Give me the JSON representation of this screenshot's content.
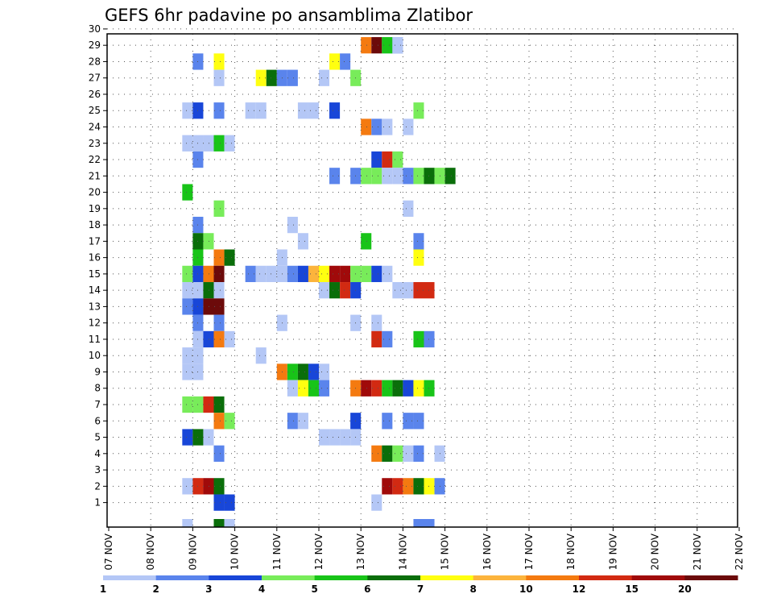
{
  "chart_data": {
    "type": "heatmap",
    "title": "GEFS 6hr padavine po ansamblima Zlatibor",
    "x_tick_labels": [
      "07 NOV",
      "08 NOV",
      "09 NOV",
      "10 NOV",
      "11 NOV",
      "12 NOV",
      "13 NOV",
      "14 NOV",
      "15 NOV",
      "16 NOV",
      "17 NOV",
      "18 NOV",
      "19 NOV",
      "20 NOV",
      "21 NOV",
      "22 NOV"
    ],
    "y_tick_labels": [
      "1",
      "2",
      "3",
      "4",
      "5",
      "6",
      "7",
      "8",
      "9",
      "10",
      "11",
      "12",
      "13",
      "14",
      "15",
      "16",
      "17",
      "18",
      "19",
      "20",
      "21",
      "22",
      "23",
      "24",
      "25",
      "26",
      "27",
      "28",
      "29",
      "30"
    ],
    "x_range_steps": [
      0,
      60
    ],
    "y_range_members": [
      0,
      30
    ],
    "grid": "dotted",
    "colorbar": {
      "labels": [
        "1",
        "2",
        "3",
        "4",
        "5",
        "6",
        "7",
        "8",
        "10",
        "12",
        "15",
        "20"
      ],
      "colors": [
        "#b4c7f6",
        "#5a84ec",
        "#1846d8",
        "#78ec5a",
        "#18c418",
        "#0a6e0a",
        "#ffff10",
        "#fcb43c",
        "#f47a10",
        "#d22a12",
        "#a00a0a",
        "#6c0a0a"
      ]
    },
    "note": "cells: [time_step (6h from 07 NOV 00z), member, precip class index 0-11]",
    "cells": [
      [
        26,
        29,
        0
      ],
      [
        27,
        29,
        1
      ],
      [
        24,
        29,
        8
      ],
      [
        25,
        29,
        11
      ],
      [
        26,
        29,
        4
      ],
      [
        27,
        29,
        0
      ],
      [
        8,
        28,
        1
      ],
      [
        10,
        28,
        6
      ],
      [
        21,
        28,
        6
      ],
      [
        22,
        28,
        1
      ],
      [
        10,
        27,
        0
      ],
      [
        14,
        27,
        6
      ],
      [
        15,
        27,
        5
      ],
      [
        16,
        27,
        1
      ],
      [
        17,
        27,
        1
      ],
      [
        20,
        27,
        0
      ],
      [
        23,
        27,
        3
      ],
      [
        7,
        25,
        0
      ],
      [
        8,
        25,
        2
      ],
      [
        10,
        25,
        1
      ],
      [
        13,
        25,
        0
      ],
      [
        14,
        25,
        0
      ],
      [
        18,
        25,
        0
      ],
      [
        19,
        25,
        0
      ],
      [
        21,
        25,
        2
      ],
      [
        29,
        25,
        3
      ],
      [
        24,
        24,
        8
      ],
      [
        25,
        24,
        1
      ],
      [
        26,
        24,
        0
      ],
      [
        28,
        24,
        0
      ],
      [
        7,
        23,
        0
      ],
      [
        8,
        23,
        0
      ],
      [
        9,
        23,
        0
      ],
      [
        10,
        23,
        4
      ],
      [
        11,
        23,
        0
      ],
      [
        8,
        22,
        1
      ],
      [
        25,
        22,
        2
      ],
      [
        26,
        22,
        9
      ],
      [
        27,
        22,
        3
      ],
      [
        21,
        21,
        1
      ],
      [
        23,
        21,
        1
      ],
      [
        24,
        21,
        3
      ],
      [
        25,
        21,
        3
      ],
      [
        26,
        21,
        0
      ],
      [
        27,
        21,
        0
      ],
      [
        28,
        21,
        1
      ],
      [
        29,
        21,
        3
      ],
      [
        30,
        21,
        5
      ],
      [
        31,
        21,
        3
      ],
      [
        32,
        21,
        5
      ],
      [
        7,
        20,
        4
      ],
      [
        10,
        19,
        3
      ],
      [
        28,
        19,
        0
      ],
      [
        8,
        18,
        1
      ],
      [
        17,
        18,
        0
      ],
      [
        8,
        17,
        5
      ],
      [
        9,
        17,
        3
      ],
      [
        18,
        17,
        0
      ],
      [
        24,
        17,
        4
      ],
      [
        29,
        17,
        1
      ],
      [
        8,
        16,
        4
      ],
      [
        10,
        16,
        8
      ],
      [
        11,
        16,
        5
      ],
      [
        16,
        16,
        0
      ],
      [
        29,
        16,
        6
      ],
      [
        7,
        15,
        3
      ],
      [
        8,
        15,
        2
      ],
      [
        9,
        15,
        8
      ],
      [
        10,
        15,
        11
      ],
      [
        13,
        15,
        1
      ],
      [
        14,
        15,
        0
      ],
      [
        15,
        15,
        0
      ],
      [
        16,
        15,
        0
      ],
      [
        17,
        15,
        1
      ],
      [
        18,
        15,
        2
      ],
      [
        19,
        15,
        7
      ],
      [
        20,
        15,
        6
      ],
      [
        21,
        15,
        10
      ],
      [
        22,
        15,
        10
      ],
      [
        23,
        15,
        3
      ],
      [
        24,
        15,
        3
      ],
      [
        25,
        15,
        2
      ],
      [
        26,
        15,
        0
      ],
      [
        7,
        14,
        0
      ],
      [
        8,
        14,
        0
      ],
      [
        9,
        14,
        5
      ],
      [
        10,
        14,
        0
      ],
      [
        20,
        14,
        0
      ],
      [
        21,
        14,
        5
      ],
      [
        22,
        14,
        9
      ],
      [
        23,
        14,
        2
      ],
      [
        27,
        14,
        0
      ],
      [
        28,
        14,
        0
      ],
      [
        29,
        14,
        9
      ],
      [
        30,
        14,
        9
      ],
      [
        7,
        13,
        1
      ],
      [
        8,
        13,
        2
      ],
      [
        9,
        13,
        11
      ],
      [
        10,
        13,
        11
      ],
      [
        8,
        12,
        1
      ],
      [
        10,
        12,
        1
      ],
      [
        16,
        12,
        0
      ],
      [
        23,
        12,
        0
      ],
      [
        25,
        12,
        0
      ],
      [
        8,
        11,
        0
      ],
      [
        9,
        11,
        2
      ],
      [
        10,
        11,
        8
      ],
      [
        11,
        11,
        0
      ],
      [
        25,
        11,
        9
      ],
      [
        26,
        11,
        1
      ],
      [
        29,
        11,
        4
      ],
      [
        30,
        11,
        1
      ],
      [
        7,
        10,
        0
      ],
      [
        8,
        10,
        0
      ],
      [
        14,
        10,
        0
      ],
      [
        7,
        9,
        0
      ],
      [
        8,
        9,
        0
      ],
      [
        16,
        9,
        8
      ],
      [
        17,
        9,
        4
      ],
      [
        18,
        9,
        5
      ],
      [
        19,
        9,
        2
      ],
      [
        20,
        9,
        0
      ],
      [
        17,
        8,
        0
      ],
      [
        18,
        8,
        6
      ],
      [
        19,
        8,
        4
      ],
      [
        20,
        8,
        1
      ],
      [
        23,
        8,
        8
      ],
      [
        24,
        8,
        10
      ],
      [
        25,
        8,
        9
      ],
      [
        26,
        8,
        4
      ],
      [
        27,
        8,
        5
      ],
      [
        28,
        8,
        2
      ],
      [
        29,
        8,
        6
      ],
      [
        30,
        8,
        4
      ],
      [
        7,
        7,
        3
      ],
      [
        8,
        7,
        3
      ],
      [
        9,
        7,
        9
      ],
      [
        10,
        7,
        5
      ],
      [
        10,
        6,
        8
      ],
      [
        11,
        6,
        3
      ],
      [
        17,
        6,
        1
      ],
      [
        18,
        6,
        0
      ],
      [
        23,
        6,
        2
      ],
      [
        26,
        6,
        1
      ],
      [
        28,
        6,
        1
      ],
      [
        29,
        6,
        1
      ],
      [
        7,
        5,
        2
      ],
      [
        8,
        5,
        5
      ],
      [
        9,
        5,
        0
      ],
      [
        20,
        5,
        0
      ],
      [
        21,
        5,
        0
      ],
      [
        22,
        5,
        0
      ],
      [
        23,
        5,
        0
      ],
      [
        10,
        4,
        1
      ],
      [
        25,
        4,
        8
      ],
      [
        26,
        4,
        5
      ],
      [
        27,
        4,
        3
      ],
      [
        28,
        4,
        0
      ],
      [
        29,
        4,
        1
      ],
      [
        31,
        4,
        0
      ],
      [
        7,
        2,
        0
      ],
      [
        8,
        2,
        9
      ],
      [
        9,
        2,
        10
      ],
      [
        10,
        2,
        5
      ],
      [
        26,
        2,
        10
      ],
      [
        27,
        2,
        9
      ],
      [
        28,
        2,
        8
      ],
      [
        29,
        2,
        5
      ],
      [
        30,
        2,
        6
      ],
      [
        31,
        2,
        1
      ],
      [
        10,
        1,
        2
      ],
      [
        11,
        1,
        2
      ],
      [
        25,
        1,
        0
      ],
      [
        7,
        0,
        0
      ],
      [
        10,
        0,
        5
      ],
      [
        11,
        0,
        0
      ],
      [
        29,
        0,
        1
      ],
      [
        30,
        0,
        1
      ]
    ]
  }
}
